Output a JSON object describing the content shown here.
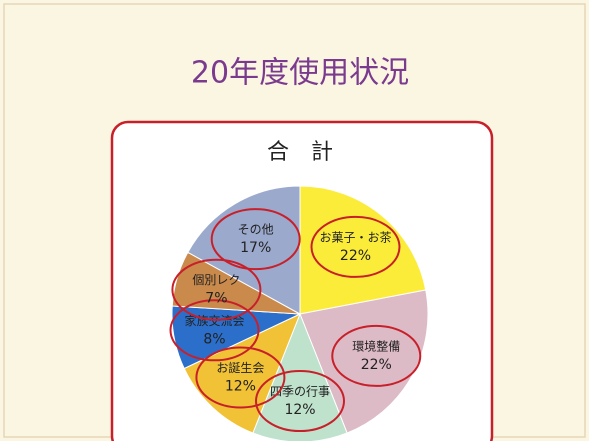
{
  "chart_data": {
    "type": "pie",
    "title": "20年度使用状況",
    "subtitle": "合　計",
    "categories": [
      "お菓子・お茶",
      "環境整備",
      "四季の行事",
      "お誕生会",
      "家族交流会",
      "個別レク",
      "その他"
    ],
    "values": [
      22,
      22,
      12,
      12,
      8,
      7,
      17
    ],
    "value_labels": [
      "22%",
      "22%",
      "12%",
      "12%",
      "8%",
      "7%",
      "17%"
    ],
    "colors": [
      "#fbec3a",
      "#dcbac6",
      "#bfe2cc",
      "#f1c136",
      "#2c6fca",
      "#c98a4c",
      "#9ba9cd"
    ]
  }
}
